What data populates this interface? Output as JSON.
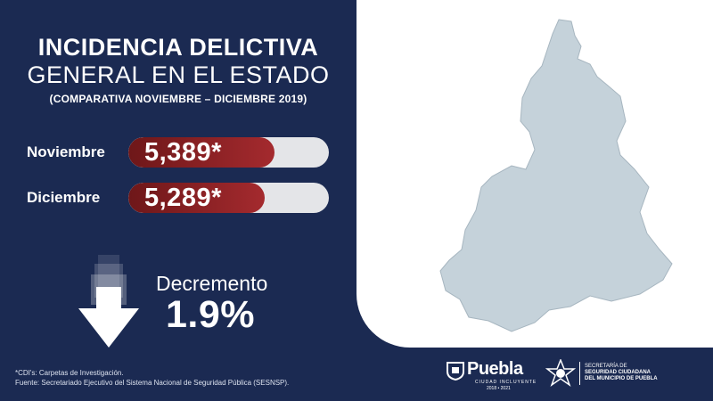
{
  "title": {
    "line1": "INCIDENCIA DELICTIVA",
    "line2": "GENERAL EN EL ESTADO",
    "subtitle": "(COMPARATIVA NOVIEMBRE – DICIEMBRE 2019)"
  },
  "comparison": [
    {
      "label": "Noviembre",
      "value": "5,389*",
      "bar_fill": 0.73
    },
    {
      "label": "Diciembre",
      "value": "5,289*",
      "bar_fill": 0.68
    }
  ],
  "decrease": {
    "label": "Decremento",
    "percent": "1.9%",
    "icon": "down-arrow-icon"
  },
  "map": {
    "icon": "state-map-puebla",
    "fill_color": "#c5d2da"
  },
  "footnote": {
    "line1": "*CDI's: Carpetas de Investigación.",
    "line2": "Fuente: Secretariado Ejecutivo del Sistema Nacional de Seguridad Pública (SESNSP)."
  },
  "logos": {
    "puebla_name": "Puebla",
    "puebla_tagline": "CIUDAD INCLUYENTE",
    "puebla_years": "2018 • 2021",
    "secretaria_line1": "SECRETARÍA DE",
    "secretaria_line2": "SEGURIDAD CIUDADANA",
    "secretaria_line3": "DEL MUNICIPIO DE PUEBLA"
  },
  "colors": {
    "background": "#1b2a52",
    "bar_fill": "#8e2226",
    "bar_track": "#e4e5e8"
  }
}
